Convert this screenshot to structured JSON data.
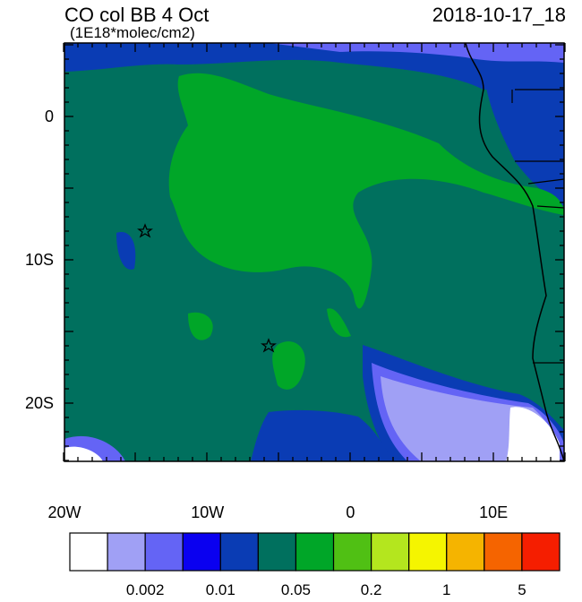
{
  "header": {
    "title": "CO col BB 4 Oct",
    "units": "(1E18*molec/cm2)",
    "date": "2018-10-17_18"
  },
  "axes": {
    "lat_labels": [
      "0",
      "10S",
      "20S"
    ],
    "lon_labels": [
      "20W",
      "10W",
      "0",
      "10E"
    ]
  },
  "colorbar": {
    "labels": [
      "0.002",
      "0.01",
      "0.05",
      "0.2",
      "1",
      "5"
    ],
    "colors": [
      "#ffffff",
      "#a0a0f5",
      "#6464f5",
      "#0a00f0",
      "#0a3cb4",
      "#00705e",
      "#00a628",
      "#50c014",
      "#b4e61e",
      "#f5f500",
      "#f5b400",
      "#f56400",
      "#f51e00"
    ]
  }
}
